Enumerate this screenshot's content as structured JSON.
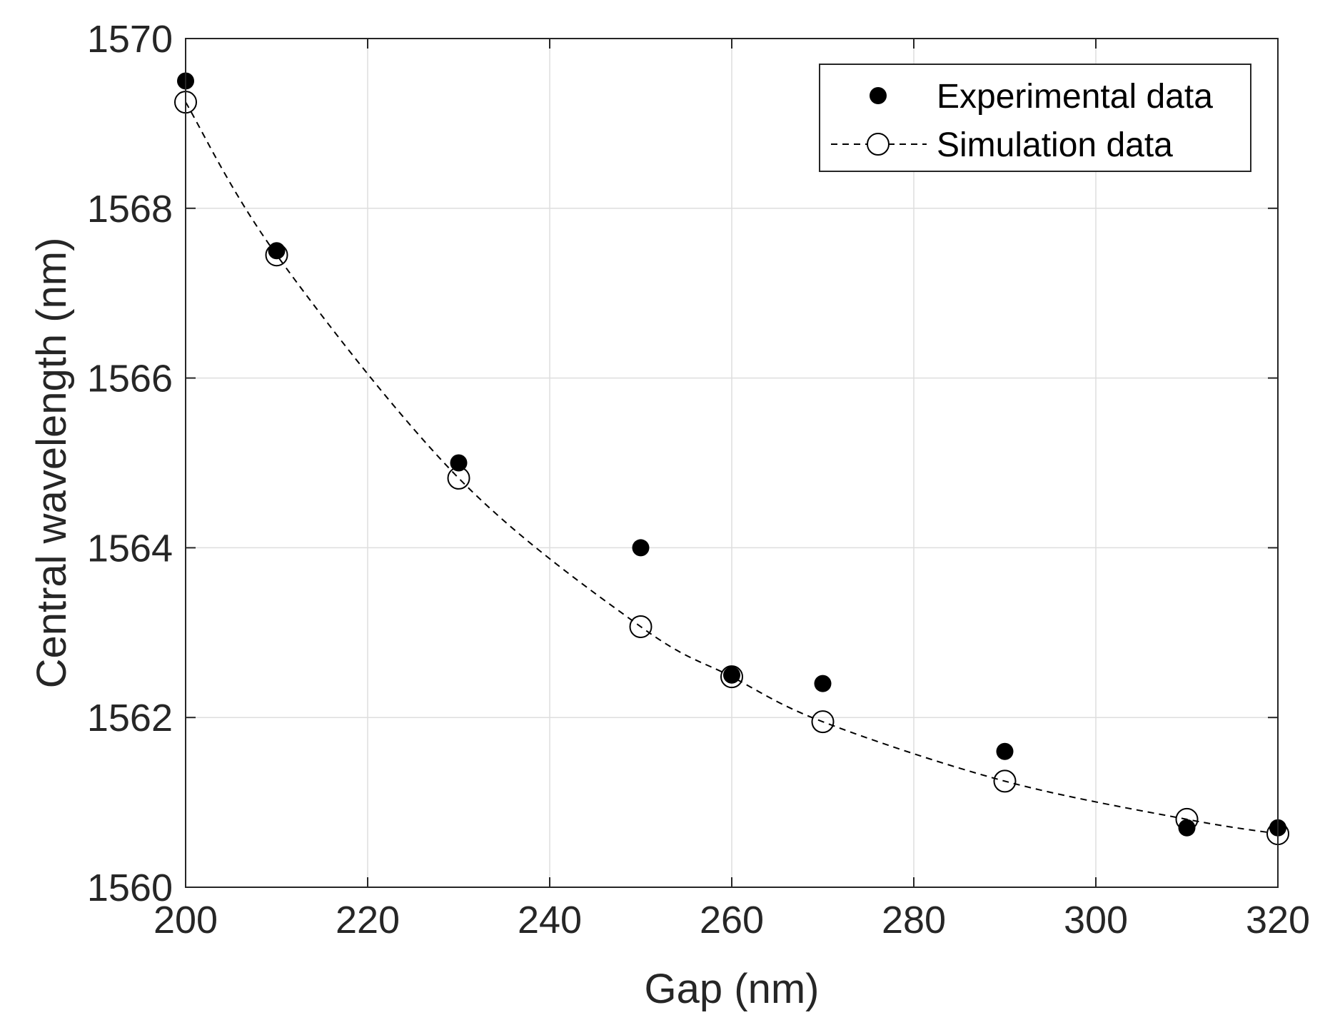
{
  "chart_data": {
    "type": "scatter",
    "title": "",
    "xlabel": "Gap (nm)",
    "ylabel": "Central wavelength (nm)",
    "xlim": [
      200,
      320
    ],
    "ylim": [
      1560,
      1570
    ],
    "xticks": [
      200,
      220,
      240,
      260,
      280,
      300,
      320
    ],
    "yticks": [
      1560,
      1562,
      1564,
      1566,
      1568,
      1570
    ],
    "xtick_labels": [
      "200",
      "220",
      "240",
      "260",
      "280",
      "300",
      "320"
    ],
    "ytick_labels": [
      "1560",
      "1562",
      "1564",
      "1566",
      "1568",
      "1570"
    ],
    "grid": true,
    "legend_position": "top-right",
    "series": [
      {
        "name": "Experimental data",
        "marker": "filled-circle",
        "line": "none",
        "color": "#000000",
        "x": [
          200,
          210,
          230,
          250,
          260,
          270,
          290,
          310,
          320
        ],
        "y": [
          1569.5,
          1567.5,
          1565.0,
          1564.0,
          1562.5,
          1562.4,
          1561.6,
          1560.7,
          1560.7
        ]
      },
      {
        "name": "Simulation data",
        "marker": "open-circle",
        "line": "dashed",
        "color": "#000000",
        "x": [
          200,
          210,
          230,
          250,
          260,
          270,
          290,
          310,
          320
        ],
        "y": [
          1569.25,
          1567.45,
          1564.82,
          1563.07,
          1562.48,
          1561.95,
          1561.25,
          1560.8,
          1560.63
        ]
      }
    ]
  }
}
